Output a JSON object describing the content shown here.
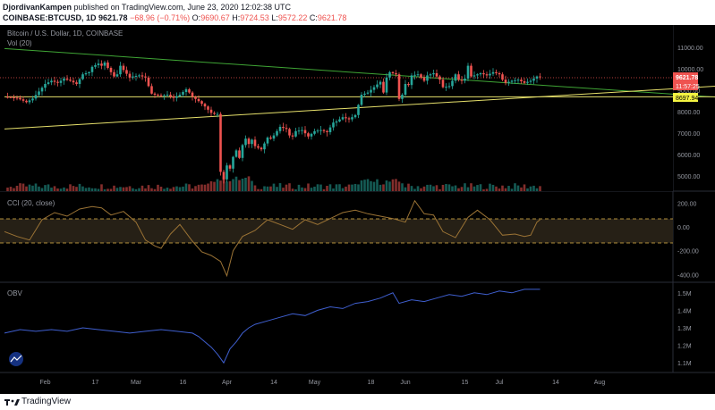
{
  "header": {
    "author": "DjordivanKampen",
    "published": "published on TradingView.com, June 23, 2020 12:02:38 UTC",
    "symbol": "COINBASE:BTCUSD, 1D",
    "price": "9621.78",
    "change": "−68.96 (−0.71%)",
    "o_label": "O:",
    "o": "9690.67",
    "h_label": "H:",
    "h": "9724.53",
    "l_label": "L:",
    "l": "9572.22",
    "c_label": "C:",
    "c": "9621.78"
  },
  "main_pane": {
    "title": "Bitcoin / U.S. Dollar, 1D, COINBASE",
    "vol_label": "Vol (20)",
    "price_badge": "9621.78",
    "countdown_badge": "11:57:25",
    "level_badge": "8697.94"
  },
  "cci_pane": {
    "title": "CCI (20, close)"
  },
  "obv_pane": {
    "title": "OBV"
  },
  "x_axis_labels": [
    "Feb",
    "17",
    "Mar",
    "16",
    "Apr",
    "14",
    "May",
    "18",
    "Jun",
    "15",
    "Jul",
    "14",
    "Aug"
  ],
  "footer": {
    "brand": "TradingView"
  },
  "colors": {
    "up": "#26a69a",
    "down": "#ef5350",
    "background": "#000000",
    "trend_green": "#3fa535",
    "trend_yellow": "#e6e06b",
    "cci_line": "#9b7335",
    "cci_band": "#e6b84a",
    "obv_line": "#3f5fcf"
  },
  "chart_data": [
    {
      "type": "candlestick",
      "title": "Bitcoin / U.S. Dollar, 1D, COINBASE",
      "ylim": [
        4300,
        11800
      ],
      "yticks": [
        5000,
        6000,
        7000,
        8000,
        9000,
        10000,
        11000
      ],
      "ytick_labels": [
        "5000.00",
        "6000.00",
        "7000.00",
        "8000.00",
        "9000.00",
        "10000.00",
        "11000.00"
      ],
      "x_dates": [
        "Jan 19",
        "Jun 23"
      ],
      "close_path": [
        [
          0,
          8700
        ],
        [
          4,
          8650
        ],
        [
          7,
          8450
        ],
        [
          9,
          8620
        ],
        [
          11,
          8950
        ],
        [
          13,
          9300
        ],
        [
          15,
          9450
        ],
        [
          17,
          9350
        ],
        [
          19,
          9550
        ],
        [
          21,
          9450
        ],
        [
          23,
          9300
        ],
        [
          25,
          9750
        ],
        [
          27,
          9850
        ],
        [
          28,
          10100
        ],
        [
          30,
          10250
        ],
        [
          31,
          10150
        ],
        [
          32,
          10300
        ],
        [
          33,
          10050
        ],
        [
          34,
          9850
        ],
        [
          35,
          9650
        ],
        [
          36,
          9750
        ],
        [
          37,
          10150
        ],
        [
          38,
          9950
        ],
        [
          40,
          9600
        ],
        [
          41,
          9650
        ],
        [
          43,
          9700
        ],
        [
          45,
          9600
        ],
        [
          46,
          9200
        ],
        [
          47,
          8850
        ],
        [
          48,
          8800
        ],
        [
          50,
          8750
        ],
        [
          52,
          8800
        ],
        [
          54,
          8650
        ],
        [
          56,
          8800
        ],
        [
          58,
          9050
        ],
        [
          59,
          8900
        ],
        [
          60,
          8700
        ],
        [
          62,
          8500
        ],
        [
          64,
          8250
        ],
        [
          66,
          7950
        ],
        [
          67,
          7900
        ],
        [
          68,
          7900
        ],
        [
          69,
          5200
        ],
        [
          70,
          4850
        ],
        [
          71,
          5500
        ],
        [
          72,
          5350
        ],
        [
          73,
          5900
        ],
        [
          74,
          6200
        ],
        [
          75,
          5850
        ],
        [
          76,
          6450
        ],
        [
          77,
          6750
        ],
        [
          78,
          6500
        ],
        [
          79,
          6700
        ],
        [
          80,
          6400
        ],
        [
          82,
          6250
        ],
        [
          84,
          6800
        ],
        [
          85,
          6750
        ],
        [
          86,
          6900
        ],
        [
          88,
          7300
        ],
        [
          90,
          7200
        ],
        [
          91,
          6900
        ],
        [
          92,
          6850
        ],
        [
          93,
          7100
        ],
        [
          95,
          7150
        ],
        [
          97,
          6850
        ],
        [
          99,
          7100
        ],
        [
          101,
          7150
        ],
        [
          103,
          7050
        ],
        [
          105,
          7500
        ],
        [
          106,
          7550
        ],
        [
          108,
          7750
        ],
        [
          110,
          7650
        ],
        [
          112,
          7850
        ],
        [
          114,
          8800
        ],
        [
          116,
          8900
        ],
        [
          118,
          9150
        ],
        [
          120,
          9400
        ],
        [
          121,
          8900
        ],
        [
          122,
          9600
        ],
        [
          123,
          9850
        ],
        [
          125,
          9750
        ],
        [
          126,
          8600
        ],
        [
          127,
          8800
        ],
        [
          128,
          9300
        ],
        [
          129,
          9250
        ],
        [
          130,
          9700
        ],
        [
          132,
          9750
        ],
        [
          134,
          9450
        ],
        [
          135,
          9700
        ],
        [
          137,
          9800
        ],
        [
          139,
          9500
        ],
        [
          140,
          9150
        ],
        [
          142,
          9200
        ],
        [
          143,
          9450
        ],
        [
          144,
          9750
        ],
        [
          145,
          9500
        ],
        [
          146,
          9450
        ],
        [
          147,
          9550
        ],
        [
          148,
          10150
        ],
        [
          149,
          9650
        ],
        [
          150,
          9700
        ],
        [
          152,
          9800
        ],
        [
          154,
          9700
        ],
        [
          156,
          9850
        ],
        [
          158,
          9750
        ],
        [
          159,
          9500
        ],
        [
          160,
          9350
        ],
        [
          162,
          9450
        ],
        [
          164,
          9500
        ],
        [
          166,
          9350
        ],
        [
          168,
          9450
        ],
        [
          170,
          9650
        ],
        [
          171,
          9621.78
        ]
      ],
      "trendlines": [
        {
          "color": "green",
          "from": [
            0,
            10950
          ],
          "to": [
            256,
            8400
          ]
        },
        {
          "color": "yellow",
          "from": [
            0,
            7200
          ],
          "to": [
            256,
            9450
          ]
        },
        {
          "color": "yellow",
          "from": [
            0,
            8700
          ],
          "to": [
            256,
            8700
          ]
        }
      ]
    },
    {
      "type": "line",
      "title": "CCI (20, close)",
      "ylim": [
        -450,
        270
      ],
      "yticks": [
        -400,
        -200,
        0,
        200
      ],
      "ytick_labels": [
        "-400.00",
        "-200.00",
        "0.00",
        "200.00"
      ],
      "bands": [
        100,
        -100
      ],
      "series": [
        {
          "values": [
            [
              0,
              -40
            ],
            [
              4,
              -80
            ],
            [
              8,
              -110
            ],
            [
              12,
              60
            ],
            [
              16,
              120
            ],
            [
              20,
              90
            ],
            [
              24,
              150
            ],
            [
              28,
              170
            ],
            [
              31,
              160
            ],
            [
              34,
              100
            ],
            [
              38,
              130
            ],
            [
              42,
              40
            ],
            [
              45,
              -110
            ],
            [
              48,
              -160
            ],
            [
              50,
              -180
            ],
            [
              53,
              -60
            ],
            [
              56,
              20
            ],
            [
              60,
              -120
            ],
            [
              63,
              -210
            ],
            [
              66,
              -240
            ],
            [
              69,
              -290
            ],
            [
              71,
              -410
            ],
            [
              73,
              -200
            ],
            [
              76,
              -80
            ],
            [
              80,
              -30
            ],
            [
              84,
              60
            ],
            [
              88,
              20
            ],
            [
              92,
              -20
            ],
            [
              96,
              60
            ],
            [
              100,
              20
            ],
            [
              104,
              70
            ],
            [
              108,
              120
            ],
            [
              112,
              140
            ],
            [
              116,
              110
            ],
            [
              120,
              90
            ],
            [
              124,
              70
            ],
            [
              128,
              40
            ],
            [
              131,
              220
            ],
            [
              134,
              110
            ],
            [
              137,
              100
            ],
            [
              140,
              -40
            ],
            [
              144,
              -90
            ],
            [
              148,
              80
            ],
            [
              151,
              140
            ],
            [
              155,
              60
            ],
            [
              159,
              -70
            ],
            [
              163,
              -60
            ],
            [
              166,
              -80
            ],
            [
              168,
              -70
            ],
            [
              170,
              40
            ],
            [
              171,
              60
            ]
          ]
        }
      ]
    },
    {
      "type": "line",
      "title": "OBV",
      "ylim": [
        1.05,
        1.55
      ],
      "yticks": [
        1.1,
        1.2,
        1.3,
        1.4,
        1.5
      ],
      "ytick_labels": [
        "1.1M",
        "1.2M",
        "1.3M",
        "1.4M",
        "1.5M"
      ],
      "series": [
        {
          "values": [
            [
              0,
              1.27
            ],
            [
              5,
              1.29
            ],
            [
              10,
              1.28
            ],
            [
              15,
              1.29
            ],
            [
              20,
              1.28
            ],
            [
              25,
              1.3
            ],
            [
              30,
              1.29
            ],
            [
              35,
              1.28
            ],
            [
              40,
              1.27
            ],
            [
              45,
              1.28
            ],
            [
              50,
              1.29
            ],
            [
              55,
              1.28
            ],
            [
              60,
              1.27
            ],
            [
              62,
              1.25
            ],
            [
              64,
              1.22
            ],
            [
              66,
              1.19
            ],
            [
              68,
              1.15
            ],
            [
              70,
              1.1
            ],
            [
              72,
              1.18
            ],
            [
              74,
              1.22
            ],
            [
              76,
              1.27
            ],
            [
              78,
              1.3
            ],
            [
              80,
              1.32
            ],
            [
              84,
              1.34
            ],
            [
              88,
              1.36
            ],
            [
              92,
              1.38
            ],
            [
              96,
              1.37
            ],
            [
              100,
              1.4
            ],
            [
              104,
              1.42
            ],
            [
              108,
              1.41
            ],
            [
              112,
              1.44
            ],
            [
              116,
              1.45
            ],
            [
              120,
              1.47
            ],
            [
              124,
              1.5
            ],
            [
              126,
              1.44
            ],
            [
              130,
              1.46
            ],
            [
              134,
              1.45
            ],
            [
              138,
              1.47
            ],
            [
              142,
              1.49
            ],
            [
              146,
              1.48
            ],
            [
              150,
              1.5
            ],
            [
              154,
              1.49
            ],
            [
              158,
              1.51
            ],
            [
              162,
              1.5
            ],
            [
              166,
              1.52
            ],
            [
              171,
              1.52
            ]
          ]
        }
      ]
    }
  ]
}
